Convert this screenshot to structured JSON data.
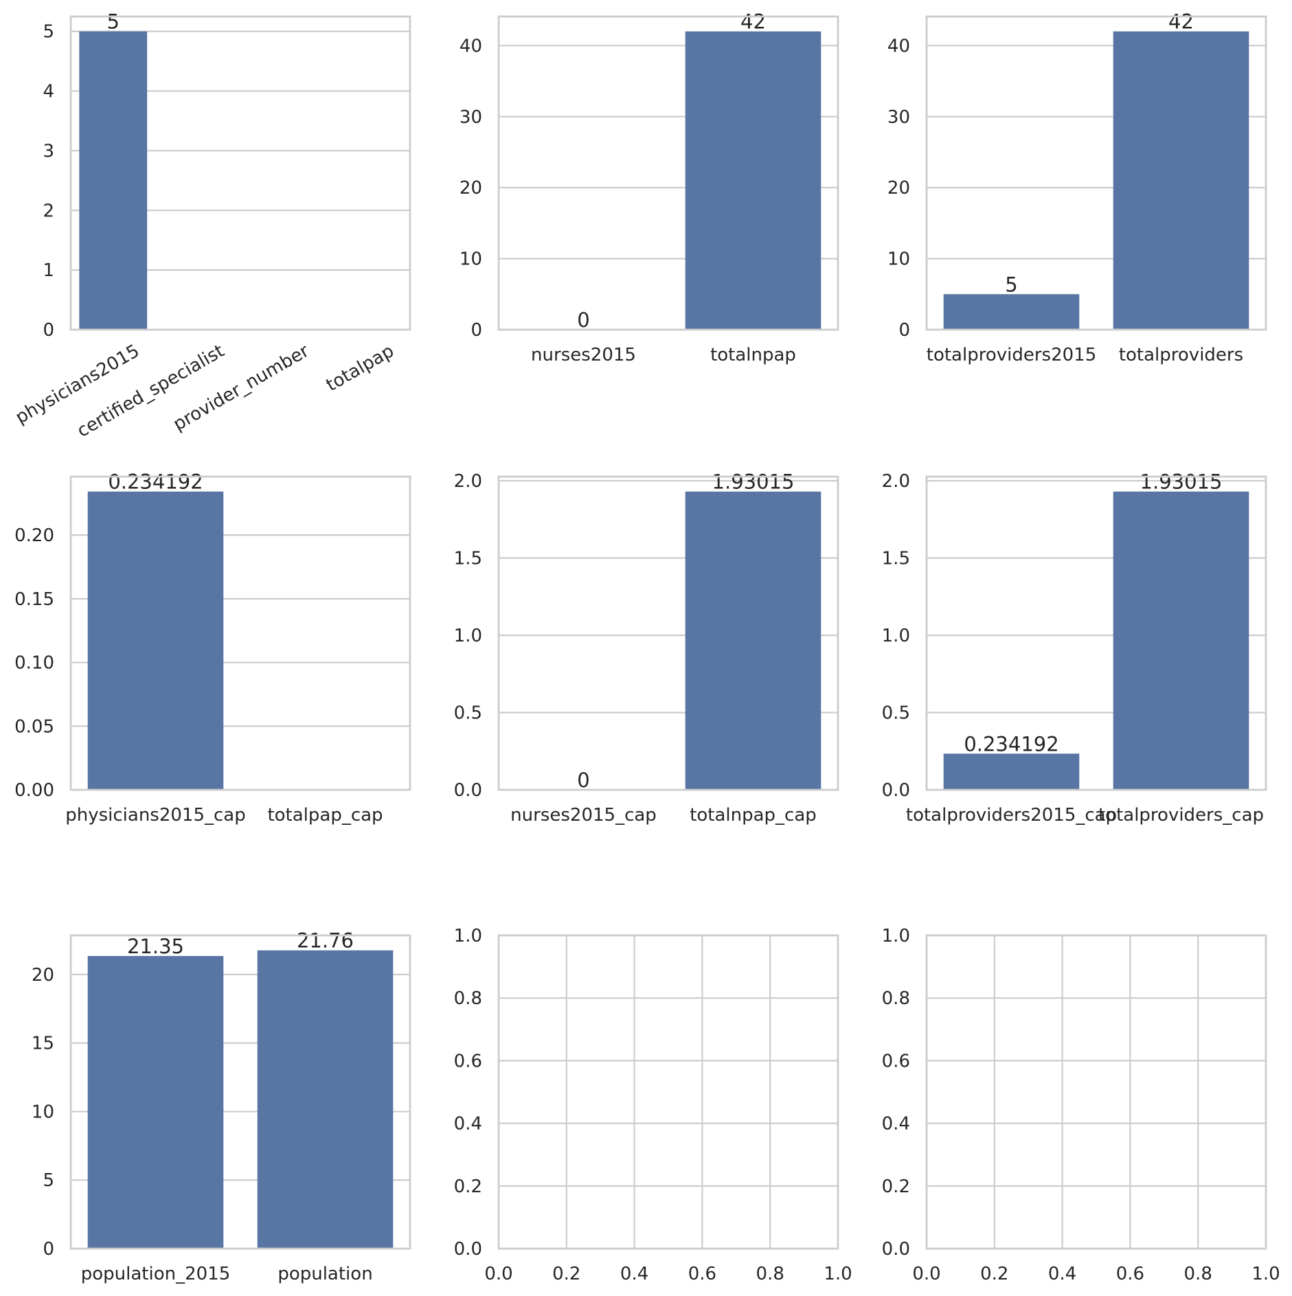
{
  "chart_data": [
    {
      "type": "bar",
      "categories": [
        "physicians2015",
        "certified_specialist",
        "provider_number",
        "totalpap"
      ],
      "values": [
        5,
        0,
        0,
        0
      ],
      "bar_labels": [
        "5",
        "",
        "",
        ""
      ],
      "ylim": [
        0,
        5.25
      ],
      "yticks": [
        0,
        1,
        2,
        3,
        4,
        5
      ],
      "ytick_labels": [
        "0",
        "1",
        "2",
        "3",
        "4",
        "5"
      ],
      "xtick_rotation": 30,
      "grid": "y",
      "bar_color": "#5975a4"
    },
    {
      "type": "bar",
      "categories": [
        "nurses2015",
        "totalnpap"
      ],
      "values": [
        0,
        42
      ],
      "bar_labels": [
        "0",
        "42"
      ],
      "ylim": [
        0,
        44.1
      ],
      "yticks": [
        0,
        10,
        20,
        30,
        40
      ],
      "ytick_labels": [
        "0",
        "10",
        "20",
        "30",
        "40"
      ],
      "grid": "y",
      "bar_color": "#5975a4"
    },
    {
      "type": "bar",
      "categories": [
        "totalproviders2015",
        "totalproviders"
      ],
      "values": [
        5,
        42
      ],
      "bar_labels": [
        "5",
        "42"
      ],
      "ylim": [
        0,
        44.1
      ],
      "yticks": [
        0,
        10,
        20,
        30,
        40
      ],
      "ytick_labels": [
        "0",
        "10",
        "20",
        "30",
        "40"
      ],
      "grid": "y",
      "bar_color": "#5975a4"
    },
    {
      "type": "bar",
      "categories": [
        "physicians2015_cap",
        "totalpap_cap"
      ],
      "values": [
        0.234192,
        0
      ],
      "bar_labels": [
        "0.234192",
        ""
      ],
      "ylim": [
        0,
        0.2459
      ],
      "yticks": [
        0,
        0.05,
        0.1,
        0.15,
        0.2
      ],
      "ytick_labels": [
        "0.00",
        "0.05",
        "0.10",
        "0.15",
        "0.20"
      ],
      "grid": "y",
      "bar_color": "#5975a4"
    },
    {
      "type": "bar",
      "categories": [
        "nurses2015_cap",
        "totalnpap_cap"
      ],
      "values": [
        0,
        1.93015
      ],
      "bar_labels": [
        "0",
        "1.93015"
      ],
      "ylim": [
        0,
        2.0267
      ],
      "yticks": [
        0,
        0.5,
        1,
        1.5,
        2
      ],
      "ytick_labels": [
        "0.0",
        "0.5",
        "1.0",
        "1.5",
        "2.0"
      ],
      "grid": "y",
      "bar_color": "#5975a4"
    },
    {
      "type": "bar",
      "categories": [
        "totalproviders2015_cap",
        "totalproviders_cap"
      ],
      "values": [
        0.234192,
        1.93015
      ],
      "bar_labels": [
        "0.234192",
        "1.93015"
      ],
      "ylim": [
        0,
        2.0267
      ],
      "yticks": [
        0,
        0.5,
        1,
        1.5,
        2
      ],
      "ytick_labels": [
        "0.0",
        "0.5",
        "1.0",
        "1.5",
        "2.0"
      ],
      "grid": "y",
      "bar_color": "#5975a4"
    },
    {
      "type": "bar",
      "categories": [
        "population_2015",
        "population"
      ],
      "values": [
        21.35,
        21.76
      ],
      "bar_labels": [
        "21.35",
        "21.76"
      ],
      "ylim": [
        0,
        22.848
      ],
      "yticks": [
        0,
        5,
        10,
        15,
        20
      ],
      "ytick_labels": [
        "0",
        "5",
        "10",
        "15",
        "20"
      ],
      "grid": "y",
      "bar_color": "#5975a4"
    },
    {
      "type": "empty",
      "xlim": [
        0,
        1
      ],
      "ylim": [
        0,
        1
      ],
      "xticks": [
        0,
        0.2,
        0.4,
        0.6,
        0.8,
        1
      ],
      "xtick_labels": [
        "0.0",
        "0.2",
        "0.4",
        "0.6",
        "0.8",
        "1.0"
      ],
      "yticks": [
        0,
        0.2,
        0.4,
        0.6,
        0.8,
        1
      ],
      "ytick_labels": [
        "0.0",
        "0.2",
        "0.4",
        "0.6",
        "0.8",
        "1.0"
      ],
      "grid": "both"
    },
    {
      "type": "empty",
      "xlim": [
        0,
        1
      ],
      "ylim": [
        0,
        1
      ],
      "xticks": [
        0,
        0.2,
        0.4,
        0.6,
        0.8,
        1
      ],
      "xtick_labels": [
        "0.0",
        "0.2",
        "0.4",
        "0.6",
        "0.8",
        "1.0"
      ],
      "yticks": [
        0,
        0.2,
        0.4,
        0.6,
        0.8,
        1
      ],
      "ytick_labels": [
        "0.0",
        "0.2",
        "0.4",
        "0.6",
        "0.8",
        "1.0"
      ],
      "grid": "both"
    }
  ]
}
